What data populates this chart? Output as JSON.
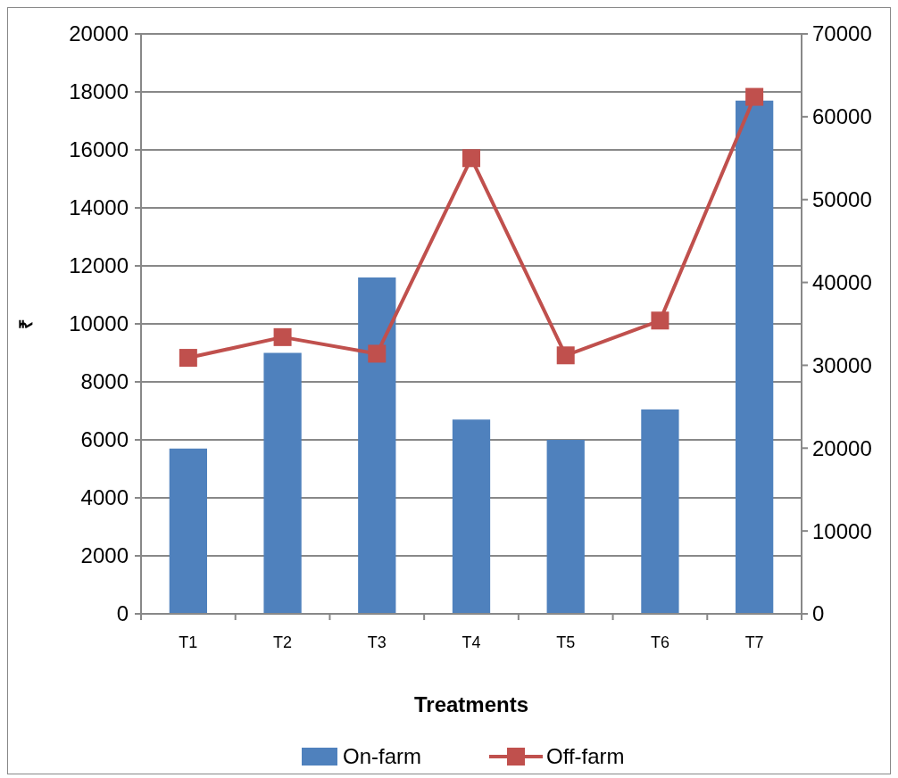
{
  "chart_data": {
    "type": "bar",
    "xlabel": "Treatments",
    "ylabel": "₹",
    "categories": [
      "T1",
      "T2",
      "T3",
      "T4",
      "T5",
      "T6",
      "T7"
    ],
    "series": [
      {
        "name": "On-farm",
        "color": "#4f81bd",
        "values": [
          5700,
          9000,
          11600,
          6700,
          6000,
          7050,
          17700
        ]
      },
      {
        "name": "Off-farm",
        "color": "#c0504d",
        "type": "line",
        "axis": "y2",
        "marker": "square",
        "values": [
          30900,
          33400,
          31400,
          55000,
          31200,
          35400,
          62400
        ]
      }
    ],
    "ylim": [
      0,
      20000
    ],
    "yticks": [
      0,
      2000,
      4000,
      6000,
      8000,
      10000,
      12000,
      14000,
      16000,
      18000,
      20000
    ],
    "y2lim": [
      0,
      70000
    ],
    "y2ticks": [
      0,
      10000,
      20000,
      30000,
      40000,
      50000,
      60000,
      70000
    ],
    "grid": "y",
    "legend": "bottom"
  }
}
